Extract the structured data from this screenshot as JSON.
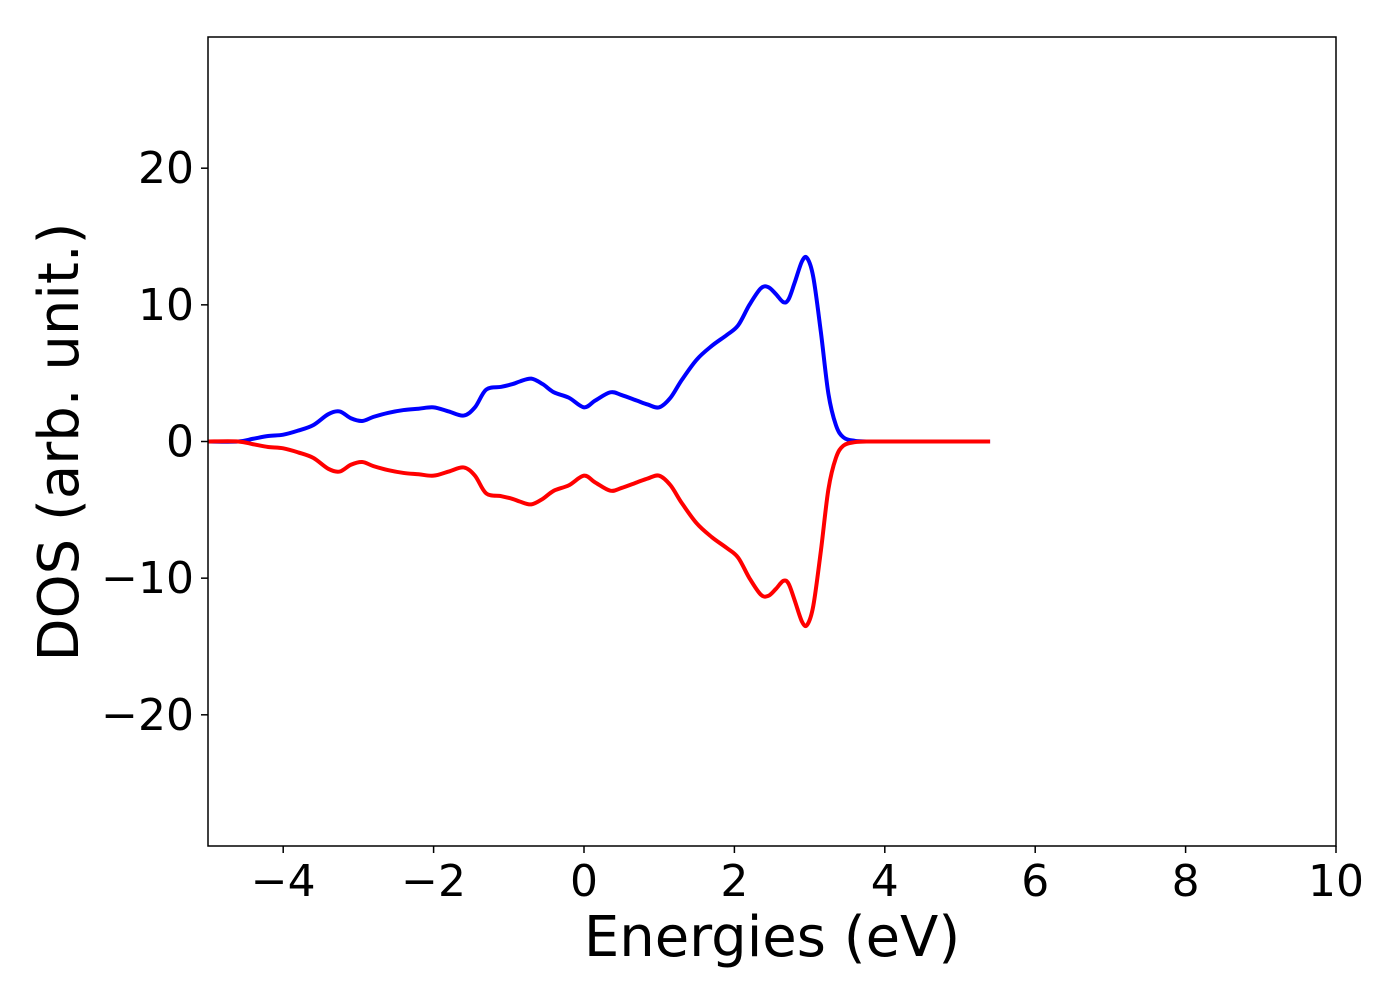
{
  "chart_data": {
    "type": "line",
    "title": "",
    "xlabel": "Energies (eV)",
    "ylabel": "DOS (arb. unit.)",
    "xlim": [
      -5,
      10
    ],
    "ylim": [
      -29.6,
      29.6
    ],
    "xticks": [
      -4,
      -2,
      0,
      2,
      4,
      6,
      8,
      10
    ],
    "yticks": [
      -20,
      -10,
      0,
      10,
      20
    ],
    "xtick_labels": [
      "−4",
      "−2",
      "0",
      "2",
      "4",
      "6",
      "8",
      "10"
    ],
    "ytick_labels": [
      "−20",
      "−10",
      "0",
      "10",
      "20"
    ],
    "grid": false,
    "legend": "none",
    "series": [
      {
        "color": "#0000ff",
        "x": [
          -5.0,
          -4.6,
          -4.4,
          -4.2,
          -4.0,
          -3.8,
          -3.6,
          -3.4,
          -3.25,
          -3.1,
          -2.95,
          -2.8,
          -2.6,
          -2.4,
          -2.2,
          -2.0,
          -1.8,
          -1.6,
          -1.45,
          -1.3,
          -1.1,
          -0.95,
          -0.85,
          -0.7,
          -0.55,
          -0.4,
          -0.2,
          0.0,
          0.15,
          0.35,
          0.5,
          0.7,
          0.85,
          1.0,
          1.15,
          1.3,
          1.5,
          1.7,
          1.9,
          2.05,
          2.2,
          2.35,
          2.45,
          2.55,
          2.65,
          2.72,
          2.8,
          2.9,
          2.97,
          3.05,
          3.15,
          3.25,
          3.35,
          3.45,
          3.6,
          3.8,
          4.0,
          4.5,
          5.0,
          5.4
        ],
        "y": [
          0,
          0,
          0.2,
          0.4,
          0.5,
          0.8,
          1.2,
          2.0,
          2.2,
          1.7,
          1.5,
          1.8,
          2.1,
          2.3,
          2.4,
          2.5,
          2.2,
          1.9,
          2.5,
          3.8,
          4.0,
          4.2,
          4.4,
          4.6,
          4.2,
          3.6,
          3.2,
          2.5,
          3.0,
          3.6,
          3.4,
          3.0,
          2.7,
          2.5,
          3.2,
          4.5,
          6.0,
          7.0,
          7.8,
          8.5,
          10.0,
          11.2,
          11.3,
          10.8,
          10.2,
          10.4,
          11.6,
          13.2,
          13.4,
          12.0,
          8.0,
          3.5,
          1.2,
          0.3,
          0.05,
          0,
          0,
          0,
          0,
          0
        ]
      },
      {
        "color": "#ff0000",
        "x": [
          -5.0,
          -4.6,
          -4.4,
          -4.2,
          -4.0,
          -3.8,
          -3.6,
          -3.4,
          -3.25,
          -3.1,
          -2.95,
          -2.8,
          -2.6,
          -2.4,
          -2.2,
          -2.0,
          -1.8,
          -1.6,
          -1.45,
          -1.3,
          -1.1,
          -0.95,
          -0.85,
          -0.7,
          -0.55,
          -0.4,
          -0.2,
          0.0,
          0.15,
          0.35,
          0.5,
          0.7,
          0.85,
          1.0,
          1.15,
          1.3,
          1.5,
          1.7,
          1.9,
          2.05,
          2.2,
          2.35,
          2.45,
          2.55,
          2.65,
          2.72,
          2.8,
          2.9,
          2.97,
          3.05,
          3.15,
          3.25,
          3.35,
          3.45,
          3.6,
          3.8,
          4.0,
          4.5,
          5.0,
          5.4
        ],
        "y": [
          0,
          0,
          -0.2,
          -0.4,
          -0.5,
          -0.8,
          -1.2,
          -2.0,
          -2.2,
          -1.7,
          -1.5,
          -1.8,
          -2.1,
          -2.3,
          -2.4,
          -2.5,
          -2.2,
          -1.9,
          -2.5,
          -3.8,
          -4.0,
          -4.2,
          -4.4,
          -4.6,
          -4.2,
          -3.6,
          -3.2,
          -2.5,
          -3.0,
          -3.6,
          -3.4,
          -3.0,
          -2.7,
          -2.5,
          -3.2,
          -4.5,
          -6.0,
          -7.0,
          -7.8,
          -8.5,
          -10.0,
          -11.2,
          -11.3,
          -10.8,
          -10.2,
          -10.4,
          -11.6,
          -13.2,
          -13.4,
          -12.0,
          -8.0,
          -3.5,
          -1.2,
          -0.3,
          -0.05,
          0,
          0,
          0,
          0,
          0
        ]
      }
    ]
  }
}
